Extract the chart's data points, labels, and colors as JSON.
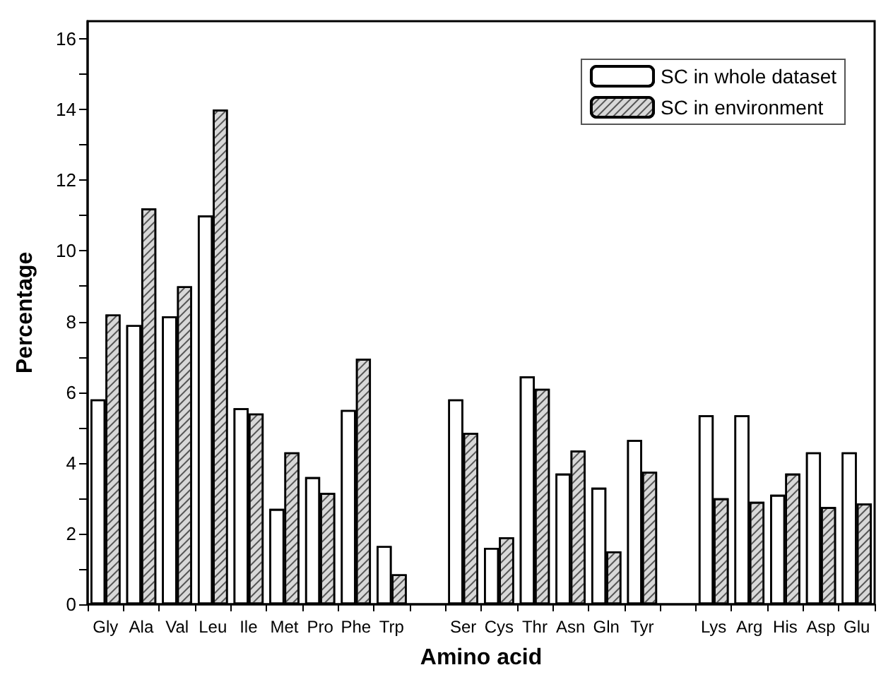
{
  "chart_data": {
    "type": "bar",
    "xlabel": "Amino acid",
    "ylabel": "Percentage",
    "categories": [
      "Gly",
      "Ala",
      "Val",
      "Leu",
      "Ile",
      "Met",
      "Pro",
      "Phe",
      "Trp",
      null,
      "Ser",
      "Cys",
      "Thr",
      "Asn",
      "Gln",
      "Tyr",
      null,
      "Lys",
      "Arg",
      "His",
      "Asp",
      "Glu"
    ],
    "series": [
      {
        "name": "SC in whole dataset",
        "color": "#ffffff",
        "values": [
          5.8,
          7.9,
          8.15,
          11.0,
          5.55,
          2.7,
          3.6,
          5.5,
          1.65,
          null,
          5.8,
          1.6,
          6.45,
          3.7,
          3.3,
          4.65,
          null,
          5.35,
          5.35,
          3.1,
          4.3,
          4.3
        ]
      },
      {
        "name": "SC in environment",
        "color": "#d8d8d8",
        "values": [
          8.2,
          11.2,
          9.0,
          14.0,
          5.4,
          4.3,
          3.15,
          6.95,
          0.85,
          null,
          4.85,
          1.9,
          6.1,
          4.35,
          1.5,
          3.75,
          null,
          3.0,
          2.9,
          3.7,
          2.75,
          2.85
        ]
      }
    ],
    "ylim": [
      0,
      16.5
    ],
    "yticks": [
      0,
      {
        "value": 1,
        "label": null
      },
      2,
      {
        "value": 3,
        "label": null
      },
      4,
      {
        "value": 5,
        "label": null
      },
      6,
      {
        "value": 7,
        "label": null
      },
      8,
      {
        "value": 9,
        "label": null
      },
      10,
      {
        "value": 11,
        "label": null
      },
      12,
      {
        "value": 13,
        "label": null
      },
      14,
      {
        "value": 15,
        "label": null
      },
      16
    ],
    "grid": false,
    "legend": "top right"
  }
}
